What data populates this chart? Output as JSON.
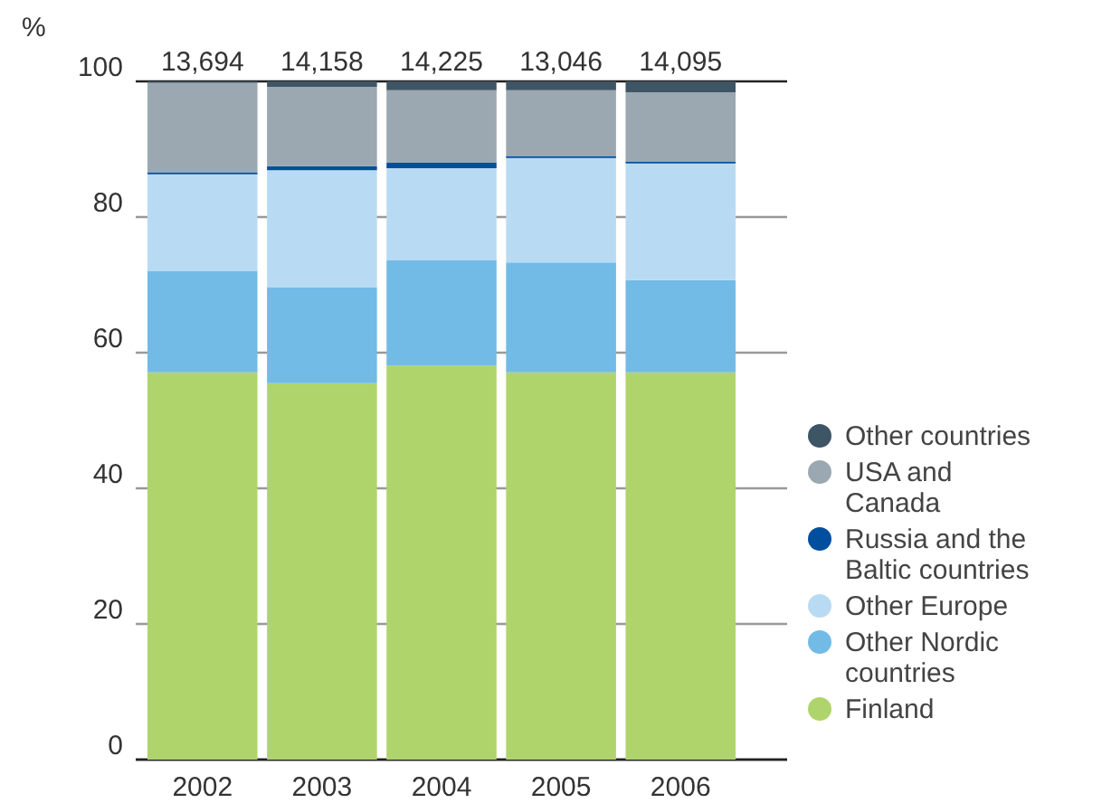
{
  "chart_data": {
    "type": "bar",
    "stacked": true,
    "ylabel": "%",
    "categories": [
      "2002",
      "2003",
      "2004",
      "2005",
      "2006"
    ],
    "series": [
      {
        "name": "Finland",
        "color": "#b0d46c",
        "values": [
          57.1,
          55.5,
          58.1,
          57.1,
          57.1
        ]
      },
      {
        "name": "Other Nordic\ncountries",
        "color": "#72bbe6",
        "values": [
          14.9,
          14.1,
          15.5,
          16.2,
          13.6
        ]
      },
      {
        "name": "Other Europe",
        "color": "#b8dbf3",
        "values": [
          14.3,
          17.3,
          13.6,
          15.4,
          17.2
        ]
      },
      {
        "name": "Russia and the\nBaltic countries",
        "color": "#004f9f",
        "values": [
          0.3,
          0.6,
          0.8,
          0.3,
          0.3
        ]
      },
      {
        "name": "USA and\nCanada",
        "color": "#9ba8b1",
        "values": [
          13.2,
          11.7,
          10.7,
          9.7,
          10.2
        ]
      },
      {
        "name": "Other countries",
        "color": "#3e5566",
        "values": [
          0.2,
          0.8,
          1.3,
          1.3,
          1.6
        ]
      }
    ],
    "annotations": [
      {
        "text": "13,694",
        "x": "2002",
        "y": 100
      },
      {
        "text": "14,158",
        "x": "2003",
        "y": 100
      },
      {
        "text": "14,225",
        "x": "2004",
        "y": 100
      },
      {
        "text": "13,046",
        "x": "2005",
        "y": 100
      },
      {
        "text": "14,095",
        "x": "2006",
        "y": 100
      }
    ],
    "ylim": [
      0,
      100
    ],
    "yticks": [
      0,
      20,
      40,
      60,
      80,
      100
    ],
    "grid": "y",
    "legend": "right"
  }
}
